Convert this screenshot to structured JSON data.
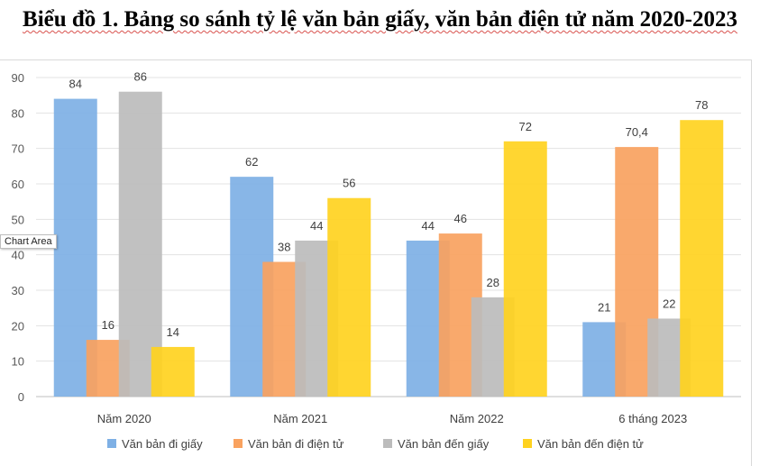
{
  "chart_data": {
    "type": "bar",
    "title": "Biểu đồ 1. Bảng so sánh tỷ lệ văn bản giấy, văn bản điện tử năm 2020-2023",
    "categories": [
      "Năm 2020",
      "Năm 2021",
      "Năm 2022",
      "6 tháng 2023"
    ],
    "series": [
      {
        "name": "Văn bản đi giấy",
        "color": "#7eb0e5",
        "values": [
          84,
          62,
          44,
          21
        ],
        "labels": [
          "84",
          "62",
          "44",
          "21"
        ]
      },
      {
        "name": "Văn bản đi điện tử",
        "color": "#f9a25f",
        "values": [
          16,
          38,
          46,
          70.4
        ],
        "labels": [
          "16",
          "38",
          "46",
          "70,4"
        ]
      },
      {
        "name": "Văn bản đến giấy",
        "color": "#bcbcbc",
        "values": [
          86,
          44,
          28,
          22
        ],
        "labels": [
          "86",
          "44",
          "28",
          "22"
        ]
      },
      {
        "name": "Văn bản đến điện tử",
        "color": "#ffd21f",
        "values": [
          14,
          56,
          72,
          78
        ],
        "labels": [
          "14",
          "56",
          "72",
          "78"
        ]
      }
    ],
    "ylim": [
      0,
      90
    ],
    "yticks": [
      0,
      10,
      20,
      30,
      40,
      50,
      60,
      70,
      80,
      90
    ],
    "grid": true,
    "legend": "bottom"
  },
  "tooltip": "Chart Area"
}
